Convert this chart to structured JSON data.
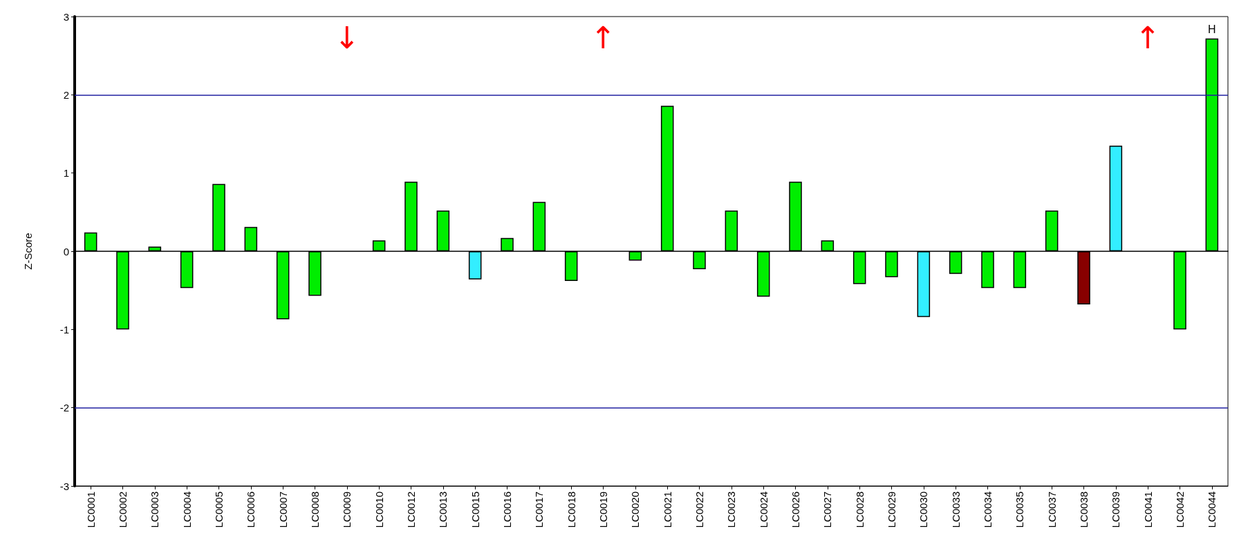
{
  "chart_data": {
    "type": "bar",
    "ylabel": "Z-Score",
    "categories": [
      "LC0001",
      "LC0002",
      "LC0003",
      "LC0004",
      "LC0005",
      "LC0006",
      "LC0007",
      "LC0008",
      "LC0009",
      "LC0010",
      "LC0012",
      "LC0013",
      "LC0015",
      "LC0016",
      "LC0017",
      "LC0018",
      "LC0019",
      "LC0020",
      "LC0021",
      "LC0022",
      "LC0023",
      "LC0024",
      "LC0026",
      "LC0027",
      "LC0028",
      "LC0029",
      "LC0030",
      "LC0033",
      "LC0034",
      "LC0035",
      "LC0037",
      "LC0038",
      "LC0039",
      "LC0041",
      "LC0042",
      "LC0044"
    ],
    "values": [
      0.24,
      -1.0,
      0.06,
      -0.47,
      0.86,
      0.31,
      -0.87,
      -0.57,
      null,
      0.14,
      0.89,
      0.52,
      -0.36,
      0.17,
      0.63,
      -0.38,
      null,
      -0.12,
      1.86,
      -0.23,
      0.52,
      -0.58,
      0.89,
      0.14,
      -0.42,
      -0.33,
      -0.84,
      -0.29,
      -0.47,
      -0.47,
      0.52,
      -0.68,
      1.35,
      null,
      -1.0,
      2.72
    ],
    "colors": [
      "#00ee00",
      "#00ee00",
      "#00ee00",
      "#00ee00",
      "#00ee00",
      "#00ee00",
      "#00ee00",
      "#00ee00",
      "#00ee00",
      "#00ee00",
      "#00ee00",
      "#00ee00",
      "#33eeff",
      "#00ee00",
      "#00ee00",
      "#00ee00",
      "#00ee00",
      "#00ee00",
      "#00ee00",
      "#00ee00",
      "#00ee00",
      "#00ee00",
      "#00ee00",
      "#00ee00",
      "#00ee00",
      "#00ee00",
      "#33eeff",
      "#00ee00",
      "#00ee00",
      "#00ee00",
      "#00ee00",
      "#880000",
      "#33eeff",
      "#00ee00",
      "#00ee00",
      "#00ee00"
    ],
    "value_labels": [
      null,
      null,
      null,
      null,
      null,
      null,
      null,
      null,
      null,
      null,
      null,
      null,
      null,
      null,
      null,
      null,
      null,
      null,
      null,
      null,
      null,
      null,
      null,
      null,
      null,
      null,
      null,
      null,
      null,
      null,
      null,
      null,
      null,
      null,
      null,
      "H"
    ],
    "ylim": [
      -3,
      3
    ],
    "yticks": [
      -3,
      -2,
      -1,
      0,
      1,
      2,
      3
    ],
    "ref_lines": [
      {
        "axis": "y",
        "value": 2,
        "color": "#2020a0"
      },
      {
        "axis": "y",
        "value": -2,
        "color": "#2020a0"
      }
    ],
    "annotations": [
      "↓",
      "↑",
      "↑"
    ],
    "grid": false
  }
}
